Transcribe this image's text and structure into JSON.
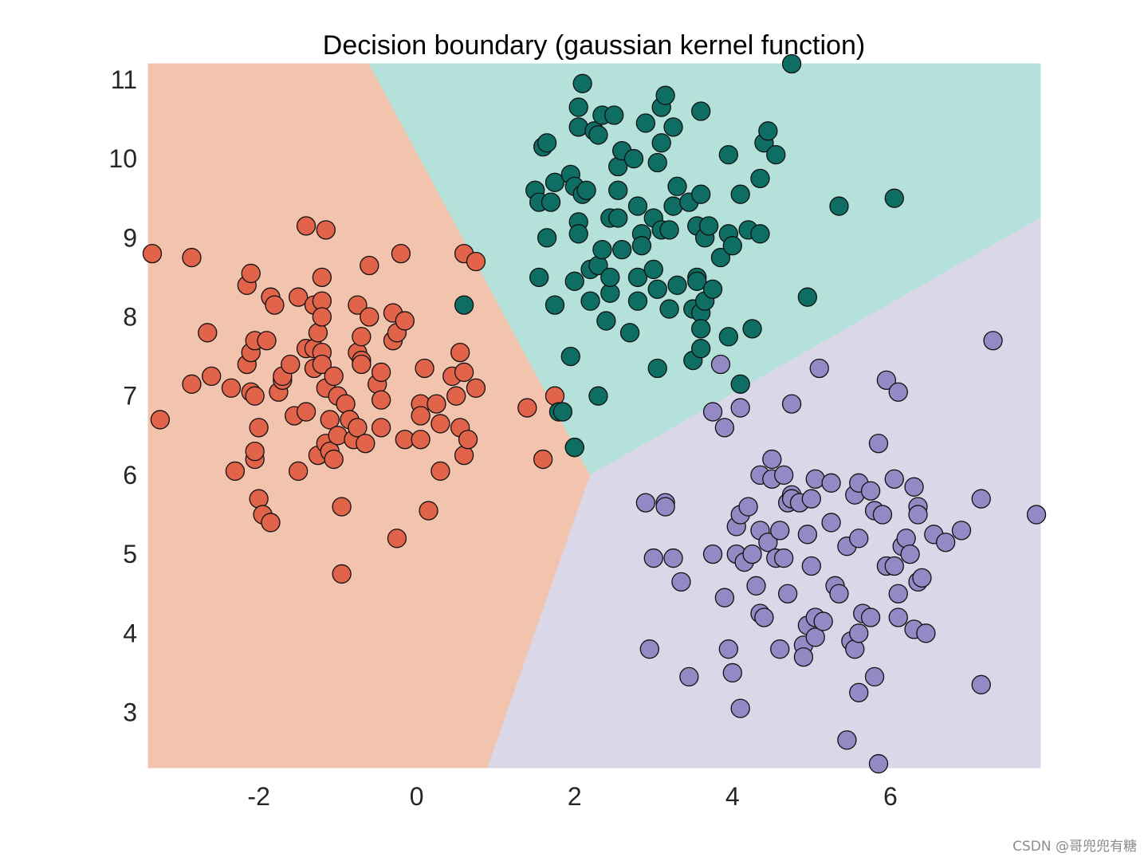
{
  "chart_data": {
    "type": "scatter",
    "title": "Decision boundary (gaussian kernel function)",
    "xlabel": "",
    "ylabel": "",
    "xlim": [
      -3.4,
      7.9
    ],
    "ylim": [
      2.3,
      11.2
    ],
    "xticks": [
      -2,
      0,
      2,
      4,
      6
    ],
    "yticks": [
      3,
      4,
      5,
      6,
      7,
      8,
      9,
      10,
      11
    ],
    "xtick_labels": [
      "-2",
      "0",
      "2",
      "4",
      "6"
    ],
    "ytick_labels": [
      "3",
      "4",
      "5",
      "6",
      "7",
      "8",
      "9",
      "10",
      "11"
    ],
    "grid": false,
    "regions": [
      {
        "class_index": 0,
        "color": "#f2c4ae",
        "polygon": [
          [
            -3.4,
            11.2
          ],
          [
            -0.6,
            11.2
          ],
          [
            2.2,
            6.0
          ],
          [
            0.9,
            2.3
          ],
          [
            -3.4,
            2.3
          ]
        ]
      },
      {
        "class_index": 1,
        "color": "#b4e2da",
        "polygon": [
          [
            -0.6,
            11.2
          ],
          [
            7.9,
            11.2
          ],
          [
            7.9,
            9.25
          ],
          [
            2.2,
            6.0
          ]
        ]
      },
      {
        "class_index": 2,
        "color": "#d9d7e8",
        "polygon": [
          [
            2.2,
            6.0
          ],
          [
            7.9,
            9.25
          ],
          [
            7.9,
            2.3
          ],
          [
            0.9,
            2.3
          ]
        ]
      }
    ],
    "series": [
      {
        "color": "#e0634a",
        "points": [
          [
            -3.35,
            8.8
          ],
          [
            -2.85,
            8.75
          ],
          [
            -1.4,
            9.15
          ],
          [
            -1.15,
            9.1
          ],
          [
            -0.2,
            8.8
          ],
          [
            0.6,
            8.8
          ],
          [
            0.75,
            8.7
          ],
          [
            -3.25,
            6.7
          ],
          [
            -2.85,
            7.15
          ],
          [
            -2.65,
            7.8
          ],
          [
            -2.6,
            7.25
          ],
          [
            -2.35,
            7.1
          ],
          [
            -2.3,
            6.05
          ],
          [
            -2.15,
            8.4
          ],
          [
            -2.1,
            8.55
          ],
          [
            -2.15,
            7.4
          ],
          [
            -2.1,
            7.55
          ],
          [
            -2.05,
            7.7
          ],
          [
            -2.1,
            7.05
          ],
          [
            -2.05,
            7.0
          ],
          [
            -2.05,
            6.2
          ],
          [
            -2.05,
            6.3
          ],
          [
            -2.0,
            6.6
          ],
          [
            -2.0,
            5.7
          ],
          [
            -1.95,
            5.5
          ],
          [
            -1.85,
            5.4
          ],
          [
            -1.9,
            7.7
          ],
          [
            -1.85,
            8.25
          ],
          [
            -1.8,
            8.15
          ],
          [
            -1.75,
            7.05
          ],
          [
            -1.7,
            7.2
          ],
          [
            -1.7,
            7.25
          ],
          [
            -1.6,
            7.4
          ],
          [
            -1.55,
            6.75
          ],
          [
            -1.5,
            8.25
          ],
          [
            -1.5,
            6.05
          ],
          [
            -1.4,
            7.6
          ],
          [
            -1.4,
            6.8
          ],
          [
            -1.3,
            8.15
          ],
          [
            -1.3,
            7.6
          ],
          [
            -1.3,
            7.35
          ],
          [
            -1.25,
            7.8
          ],
          [
            -1.25,
            6.25
          ],
          [
            -1.2,
            8.5
          ],
          [
            -1.2,
            8.2
          ],
          [
            -1.2,
            8.0
          ],
          [
            -1.2,
            7.55
          ],
          [
            -1.2,
            7.4
          ],
          [
            -1.15,
            6.4
          ],
          [
            -1.15,
            7.1
          ],
          [
            -1.1,
            6.7
          ],
          [
            -1.1,
            6.3
          ],
          [
            -1.05,
            7.25
          ],
          [
            -1.05,
            6.2
          ],
          [
            -1.0,
            6.5
          ],
          [
            -1.0,
            7.0
          ],
          [
            -0.95,
            5.6
          ],
          [
            -0.95,
            4.75
          ],
          [
            -0.9,
            6.9
          ],
          [
            -0.85,
            6.7
          ],
          [
            -0.8,
            6.45
          ],
          [
            -0.75,
            8.15
          ],
          [
            -0.75,
            7.55
          ],
          [
            -0.7,
            7.45
          ],
          [
            -0.7,
            7.4
          ],
          [
            -0.7,
            7.75
          ],
          [
            -0.75,
            6.6
          ],
          [
            -0.65,
            6.4
          ],
          [
            -0.6,
            8.65
          ],
          [
            -0.6,
            8.0
          ],
          [
            -0.5,
            7.15
          ],
          [
            -0.45,
            6.95
          ],
          [
            -0.45,
            6.6
          ],
          [
            -0.45,
            7.3
          ],
          [
            -0.3,
            8.05
          ],
          [
            -0.3,
            7.7
          ],
          [
            -0.25,
            7.8
          ],
          [
            -0.25,
            5.2
          ],
          [
            -0.15,
            7.95
          ],
          [
            -0.15,
            6.45
          ],
          [
            0.05,
            6.9
          ],
          [
            0.05,
            6.75
          ],
          [
            0.05,
            6.45
          ],
          [
            0.1,
            7.35
          ],
          [
            0.15,
            5.55
          ],
          [
            0.25,
            6.9
          ],
          [
            0.3,
            6.65
          ],
          [
            0.3,
            6.05
          ],
          [
            0.45,
            7.25
          ],
          [
            0.5,
            7.0
          ],
          [
            0.55,
            7.55
          ],
          [
            0.55,
            6.6
          ],
          [
            0.6,
            7.3
          ],
          [
            0.6,
            6.25
          ],
          [
            0.65,
            6.45
          ],
          [
            0.75,
            7.1
          ],
          [
            1.4,
            6.85
          ],
          [
            1.6,
            6.2
          ],
          [
            1.75,
            7.0
          ]
        ]
      },
      {
        "color": "#0f6e63",
        "points": [
          [
            1.5,
            9.6
          ],
          [
            1.55,
            9.45
          ],
          [
            1.55,
            8.5
          ],
          [
            1.6,
            10.15
          ],
          [
            1.65,
            10.2
          ],
          [
            1.65,
            9.0
          ],
          [
            1.7,
            9.45
          ],
          [
            1.75,
            9.7
          ],
          [
            1.75,
            8.15
          ],
          [
            1.8,
            6.8
          ],
          [
            1.85,
            6.8
          ],
          [
            1.95,
            9.8
          ],
          [
            1.95,
            7.5
          ],
          [
            2.0,
            9.65
          ],
          [
            2.0,
            8.45
          ],
          [
            2.0,
            6.35
          ],
          [
            2.05,
            10.65
          ],
          [
            2.05,
            10.4
          ],
          [
            2.05,
            9.2
          ],
          [
            2.05,
            9.05
          ],
          [
            2.1,
            10.95
          ],
          [
            2.1,
            9.55
          ],
          [
            2.15,
            9.6
          ],
          [
            2.2,
            8.6
          ],
          [
            2.2,
            8.2
          ],
          [
            2.25,
            10.35
          ],
          [
            2.3,
            10.3
          ],
          [
            2.3,
            8.65
          ],
          [
            2.3,
            7.0
          ],
          [
            2.35,
            10.55
          ],
          [
            2.35,
            8.85
          ],
          [
            2.4,
            7.95
          ],
          [
            2.45,
            9.25
          ],
          [
            2.45,
            8.3
          ],
          [
            2.45,
            8.5
          ],
          [
            2.5,
            10.55
          ],
          [
            2.55,
            9.25
          ],
          [
            2.55,
            9.9
          ],
          [
            2.55,
            9.6
          ],
          [
            2.6,
            10.1
          ],
          [
            2.6,
            8.85
          ],
          [
            2.7,
            7.8
          ],
          [
            2.75,
            10.0
          ],
          [
            2.8,
            9.4
          ],
          [
            2.8,
            8.5
          ],
          [
            2.8,
            8.2
          ],
          [
            2.85,
            9.05
          ],
          [
            2.85,
            8.9
          ],
          [
            2.9,
            10.45
          ],
          [
            3.0,
            9.25
          ],
          [
            3.0,
            8.6
          ],
          [
            3.05,
            9.95
          ],
          [
            3.05,
            8.35
          ],
          [
            3.05,
            7.35
          ],
          [
            3.1,
            10.65
          ],
          [
            3.1,
            10.2
          ],
          [
            3.1,
            9.1
          ],
          [
            3.15,
            10.8
          ],
          [
            3.2,
            9.1
          ],
          [
            3.2,
            8.1
          ],
          [
            3.25,
            10.4
          ],
          [
            3.25,
            9.4
          ],
          [
            3.3,
            9.65
          ],
          [
            3.3,
            8.4
          ],
          [
            3.45,
            9.45
          ],
          [
            3.5,
            8.1
          ],
          [
            3.5,
            7.45
          ],
          [
            3.55,
            9.15
          ],
          [
            3.55,
            8.5
          ],
          [
            3.55,
            8.45
          ],
          [
            3.6,
            9.55
          ],
          [
            3.6,
            10.6
          ],
          [
            3.6,
            8.05
          ],
          [
            3.6,
            7.85
          ],
          [
            3.6,
            7.6
          ],
          [
            3.65,
            9.0
          ],
          [
            3.65,
            8.2
          ],
          [
            3.7,
            9.15
          ],
          [
            3.75,
            8.35
          ],
          [
            3.85,
            8.75
          ],
          [
            3.95,
            10.05
          ],
          [
            3.95,
            9.05
          ],
          [
            3.95,
            7.75
          ],
          [
            4.0,
            8.9
          ],
          [
            4.1,
            9.55
          ],
          [
            4.1,
            7.15
          ],
          [
            4.2,
            9.1
          ],
          [
            4.25,
            7.85
          ],
          [
            4.35,
            9.05
          ],
          [
            4.35,
            9.75
          ],
          [
            4.4,
            10.2
          ],
          [
            4.45,
            10.35
          ],
          [
            4.55,
            10.05
          ],
          [
            4.75,
            11.2
          ],
          [
            4.95,
            8.25
          ],
          [
            5.35,
            9.4
          ],
          [
            6.05,
            9.5
          ],
          [
            0.6,
            8.15
          ],
          [
            2.0,
            6.35
          ]
        ]
      },
      {
        "color": "#9389c4",
        "points": [
          [
            2.9,
            5.65
          ],
          [
            2.95,
            3.8
          ],
          [
            3.0,
            4.95
          ],
          [
            3.15,
            5.65
          ],
          [
            3.15,
            5.6
          ],
          [
            3.25,
            4.95
          ],
          [
            3.35,
            4.65
          ],
          [
            3.45,
            3.45
          ],
          [
            3.75,
            5.0
          ],
          [
            3.75,
            6.8
          ],
          [
            3.85,
            7.4
          ],
          [
            3.9,
            6.6
          ],
          [
            3.9,
            4.45
          ],
          [
            3.95,
            3.8
          ],
          [
            4.0,
            3.5
          ],
          [
            4.05,
            5.0
          ],
          [
            4.05,
            5.35
          ],
          [
            4.1,
            5.5
          ],
          [
            4.1,
            6.85
          ],
          [
            4.1,
            3.05
          ],
          [
            4.15,
            4.9
          ],
          [
            4.2,
            5.6
          ],
          [
            4.25,
            5.0
          ],
          [
            4.3,
            4.6
          ],
          [
            4.35,
            5.3
          ],
          [
            4.35,
            6.0
          ],
          [
            4.35,
            4.25
          ],
          [
            4.4,
            4.2
          ],
          [
            4.45,
            5.15
          ],
          [
            4.5,
            6.2
          ],
          [
            4.5,
            5.95
          ],
          [
            4.55,
            4.95
          ],
          [
            4.6,
            5.3
          ],
          [
            4.6,
            3.8
          ],
          [
            4.65,
            6.0
          ],
          [
            4.65,
            4.95
          ],
          [
            4.7,
            5.65
          ],
          [
            4.7,
            4.5
          ],
          [
            4.75,
            5.75
          ],
          [
            4.75,
            5.7
          ],
          [
            4.75,
            6.9
          ],
          [
            4.85,
            5.65
          ],
          [
            4.9,
            3.85
          ],
          [
            4.9,
            3.7
          ],
          [
            4.95,
            5.25
          ],
          [
            4.95,
            4.1
          ],
          [
            5.0,
            5.7
          ],
          [
            5.0,
            4.85
          ],
          [
            5.05,
            4.2
          ],
          [
            5.05,
            5.95
          ],
          [
            5.05,
            3.95
          ],
          [
            5.1,
            7.35
          ],
          [
            5.15,
            4.15
          ],
          [
            5.25,
            5.9
          ],
          [
            5.25,
            5.4
          ],
          [
            5.3,
            4.6
          ],
          [
            5.35,
            4.5
          ],
          [
            5.45,
            2.65
          ],
          [
            5.45,
            5.1
          ],
          [
            5.5,
            3.9
          ],
          [
            5.55,
            3.8
          ],
          [
            5.55,
            5.75
          ],
          [
            5.6,
            5.9
          ],
          [
            5.6,
            5.2
          ],
          [
            5.6,
            4.0
          ],
          [
            5.6,
            3.25
          ],
          [
            5.65,
            4.25
          ],
          [
            5.75,
            5.8
          ],
          [
            5.75,
            4.2
          ],
          [
            5.8,
            5.55
          ],
          [
            5.8,
            3.45
          ],
          [
            5.85,
            6.4
          ],
          [
            5.85,
            2.35
          ],
          [
            5.9,
            5.5
          ],
          [
            5.95,
            7.2
          ],
          [
            5.95,
            4.85
          ],
          [
            6.05,
            4.85
          ],
          [
            6.05,
            5.95
          ],
          [
            6.1,
            4.5
          ],
          [
            6.1,
            4.2
          ],
          [
            6.1,
            7.05
          ],
          [
            6.15,
            5.1
          ],
          [
            6.2,
            5.2
          ],
          [
            6.25,
            5.0
          ],
          [
            6.3,
            4.05
          ],
          [
            6.3,
            5.85
          ],
          [
            6.35,
            5.6
          ],
          [
            6.35,
            5.5
          ],
          [
            6.35,
            4.65
          ],
          [
            6.4,
            4.7
          ],
          [
            6.45,
            4.0
          ],
          [
            6.55,
            5.25
          ],
          [
            6.7,
            5.15
          ],
          [
            6.9,
            5.3
          ],
          [
            7.15,
            5.7
          ],
          [
            7.15,
            3.35
          ],
          [
            7.3,
            7.7
          ],
          [
            7.85,
            5.5
          ]
        ]
      }
    ]
  },
  "watermark": "CSDN @哥兜兜有糖"
}
